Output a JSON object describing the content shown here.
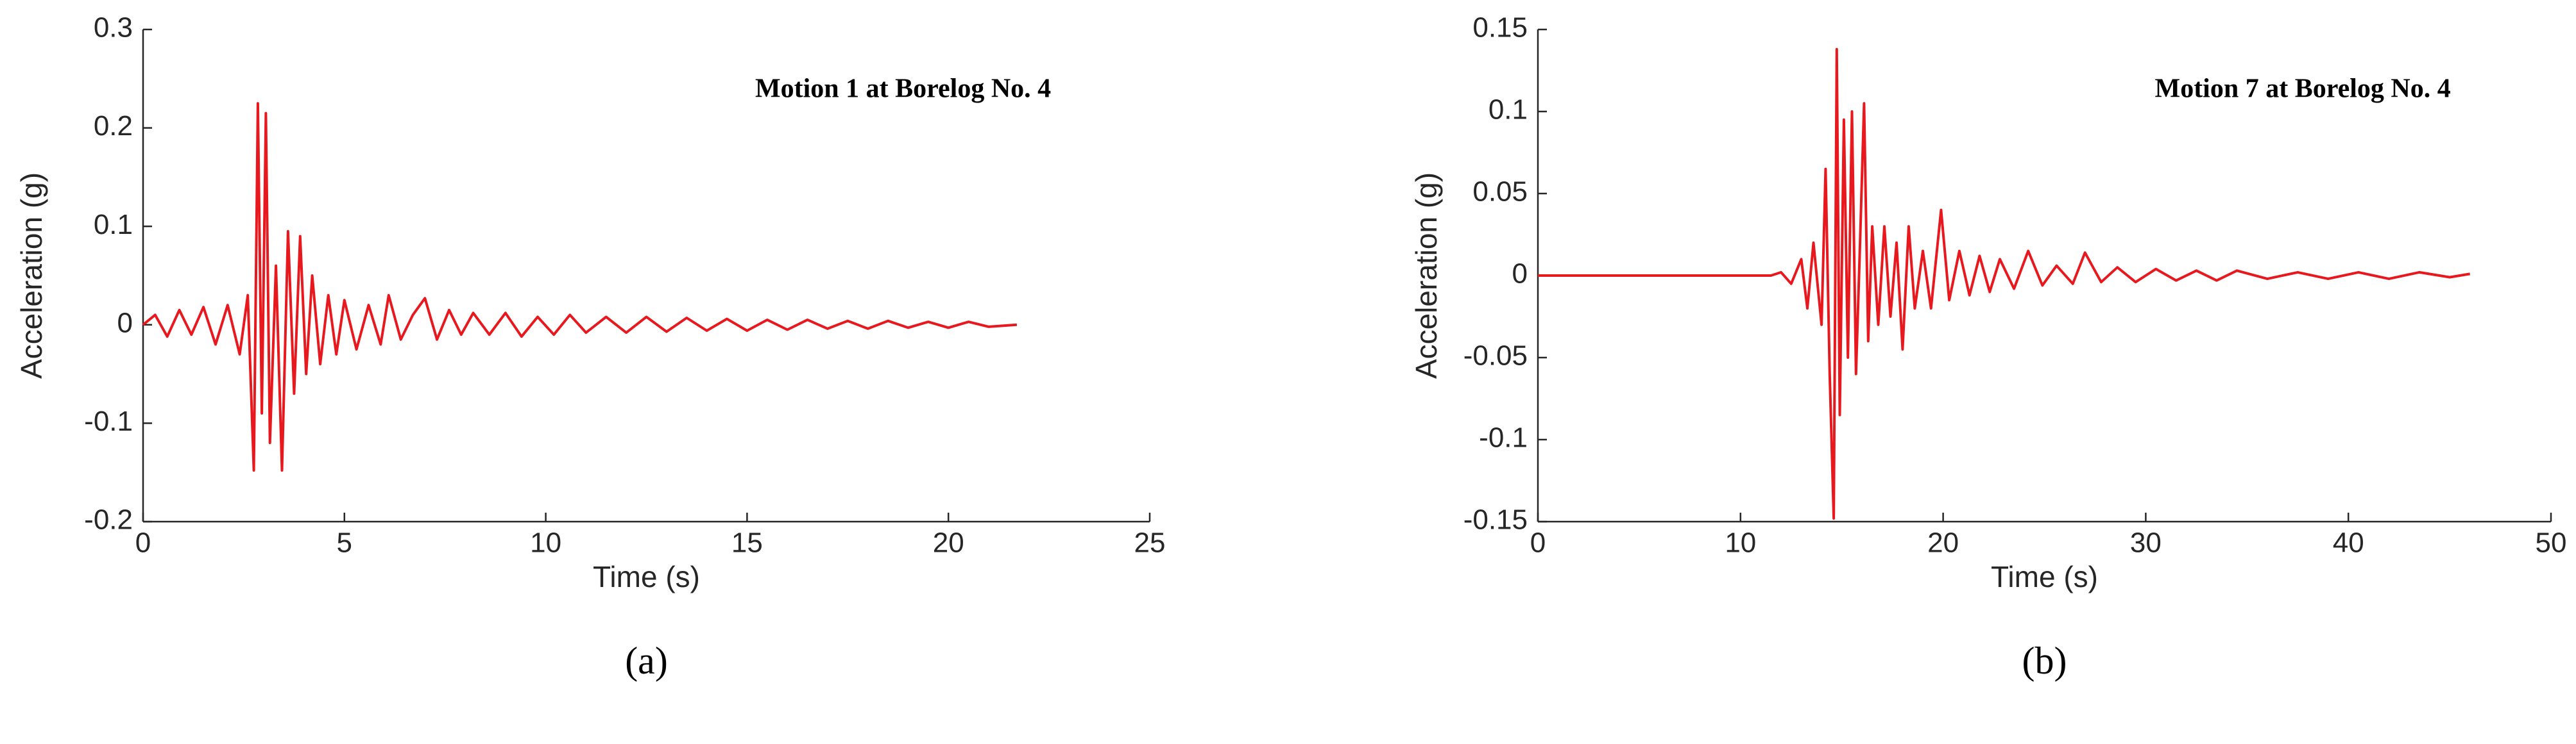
{
  "chart_data": [
    {
      "type": "line",
      "annotation": "Motion 1 at Borelog No. 4",
      "xlabel": "Time (s)",
      "ylabel": "Acceleration (g)",
      "caption": "(a)",
      "color": "#e8191e",
      "xlim": [
        0,
        25
      ],
      "xticks": [
        0,
        5,
        10,
        15,
        20,
        25
      ],
      "ylim": [
        -0.2,
        0.3
      ],
      "yticks": [
        -0.2,
        -0.1,
        0,
        0.1,
        0.2,
        0.3
      ],
      "x": [
        0,
        0.3,
        0.6,
        0.9,
        1.2,
        1.5,
        1.8,
        2.1,
        2.4,
        2.6,
        2.75,
        2.85,
        2.95,
        3.05,
        3.15,
        3.3,
        3.45,
        3.6,
        3.75,
        3.9,
        4.05,
        4.2,
        4.4,
        4.6,
        4.8,
        5.0,
        5.3,
        5.6,
        5.9,
        6.1,
        6.4,
        6.7,
        7.0,
        7.3,
        7.6,
        7.9,
        8.2,
        8.6,
        9.0,
        9.4,
        9.8,
        10.2,
        10.6,
        11.0,
        11.5,
        12.0,
        12.5,
        13.0,
        13.5,
        14.0,
        14.5,
        15.0,
        15.5,
        16.0,
        16.5,
        17.0,
        17.5,
        18.0,
        18.5,
        19.0,
        19.5,
        20.0,
        20.5,
        21.0,
        21.7
      ],
      "values": [
        0,
        0.01,
        -0.012,
        0.015,
        -0.01,
        0.018,
        -0.02,
        0.02,
        -0.03,
        0.03,
        -0.148,
        0.225,
        -0.09,
        0.215,
        -0.12,
        0.06,
        -0.148,
        0.095,
        -0.07,
        0.09,
        -0.05,
        0.05,
        -0.04,
        0.03,
        -0.03,
        0.025,
        -0.025,
        0.02,
        -0.02,
        0.03,
        -0.015,
        0.01,
        0.027,
        -0.015,
        0.015,
        -0.01,
        0.012,
        -0.01,
        0.012,
        -0.012,
        0.008,
        -0.01,
        0.01,
        -0.008,
        0.008,
        -0.008,
        0.008,
        -0.007,
        0.007,
        -0.006,
        0.006,
        -0.006,
        0.005,
        -0.005,
        0.005,
        -0.004,
        0.004,
        -0.004,
        0.004,
        -0.003,
        0.003,
        -0.003,
        0.003,
        -0.002,
        0
      ]
    },
    {
      "type": "line",
      "annotation": "Motion 7 at Borelog No. 4",
      "xlabel": "Time (s)",
      "ylabel": "Acceleration (g)",
      "caption": "(b)",
      "color": "#e8191e",
      "xlim": [
        0,
        50
      ],
      "xticks": [
        0,
        10,
        20,
        30,
        40,
        50
      ],
      "ylim": [
        -0.15,
        0.15
      ],
      "yticks": [
        -0.15,
        -0.1,
        -0.05,
        0,
        0.05,
        0.1,
        0.15
      ],
      "x": [
        0,
        11.5,
        12,
        12.5,
        13,
        13.3,
        13.6,
        14,
        14.2,
        14.4,
        14.6,
        14.75,
        14.9,
        15.1,
        15.3,
        15.5,
        15.7,
        15.9,
        16.1,
        16.3,
        16.5,
        16.8,
        17.1,
        17.4,
        17.7,
        18.0,
        18.3,
        18.6,
        19,
        19.4,
        19.9,
        20.3,
        20.8,
        21.3,
        21.8,
        22.3,
        22.8,
        23.5,
        24.2,
        24.9,
        25.6,
        26.4,
        27,
        27.8,
        28.6,
        29.5,
        30.5,
        31.5,
        32.5,
        33.5,
        34.5,
        36,
        37.5,
        39,
        40.5,
        42,
        43.5,
        45,
        46
      ],
      "values": [
        0,
        0,
        0.002,
        -0.005,
        0.01,
        -0.02,
        0.02,
        -0.03,
        0.065,
        -0.06,
        -0.148,
        0.138,
        -0.085,
        0.095,
        -0.05,
        0.1,
        -0.06,
        0.02,
        0.105,
        -0.04,
        0.03,
        -0.03,
        0.03,
        -0.025,
        0.02,
        -0.045,
        0.03,
        -0.02,
        0.015,
        -0.02,
        0.04,
        -0.015,
        0.015,
        -0.012,
        0.012,
        -0.01,
        0.01,
        -0.008,
        0.015,
        -0.006,
        0.006,
        -0.005,
        0.014,
        -0.004,
        0.005,
        -0.004,
        0.004,
        -0.003,
        0.003,
        -0.003,
        0.003,
        -0.002,
        0.002,
        -0.002,
        0.002,
        -0.002,
        0.002,
        -0.001,
        0.001
      ]
    }
  ]
}
